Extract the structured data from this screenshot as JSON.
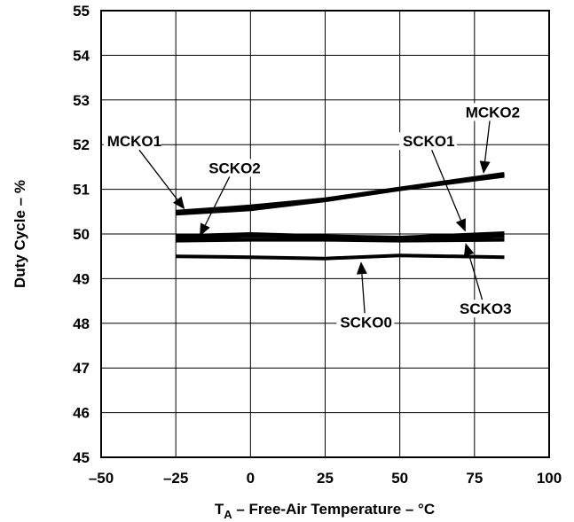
{
  "chart_data": {
    "type": "line",
    "xlabel_prefix": "T",
    "xlabel_sub": "A",
    "xlabel_rest": " – Free-Air Temperature – °C",
    "ylabel": "Duty Cycle – %",
    "xlim": [
      -50,
      100
    ],
    "ylim": [
      45,
      55
    ],
    "xticks": [
      -50,
      -25,
      0,
      25,
      50,
      75,
      100
    ],
    "xtick_labels": [
      "–50",
      "–25",
      "0",
      "25",
      "50",
      "75",
      "100"
    ],
    "yticks": [
      45,
      46,
      47,
      48,
      49,
      50,
      51,
      52,
      53,
      54,
      55
    ],
    "ytick_labels": [
      "45",
      "46",
      "47",
      "48",
      "49",
      "50",
      "51",
      "52",
      "53",
      "54",
      "55"
    ],
    "grid": true,
    "series": [
      {
        "name": "MCKO1",
        "x": [
          -25,
          0,
          25,
          50,
          85
        ],
        "y": [
          50.45,
          50.55,
          50.75,
          51.0,
          51.3
        ]
      },
      {
        "name": "MCKO2",
        "x": [
          -25,
          0,
          25,
          50,
          85
        ],
        "y": [
          50.5,
          50.62,
          50.78,
          51.02,
          51.35
        ]
      },
      {
        "name": "SCKO1",
        "x": [
          -25,
          0,
          25,
          50,
          85
        ],
        "y": [
          49.95,
          50.0,
          49.95,
          49.92,
          50.02
        ]
      },
      {
        "name": "SCKO2",
        "x": [
          -25,
          0,
          25,
          50,
          85
        ],
        "y": [
          49.9,
          49.95,
          49.93,
          49.88,
          49.95
        ]
      },
      {
        "name": "SCKO3",
        "x": [
          -25,
          0,
          25,
          50,
          85
        ],
        "y": [
          49.85,
          49.87,
          49.87,
          49.85,
          49.87
        ]
      },
      {
        "name": "SCKO0",
        "x": [
          -25,
          0,
          25,
          50,
          85
        ],
        "y": [
          49.5,
          49.48,
          49.45,
          49.52,
          49.48
        ]
      }
    ],
    "annotations": [
      {
        "text": "MCKO1",
        "label_at": [
          -48,
          52.0
        ],
        "arrow_tip": [
          -22,
          50.55
        ]
      },
      {
        "text": "SCKO2",
        "label_at": [
          -14,
          51.4
        ],
        "arrow_tip": [
          -17,
          49.95
        ]
      },
      {
        "text": "SCKO1",
        "label_at": [
          51,
          52.0
        ],
        "arrow_tip": [
          72,
          50.05
        ]
      },
      {
        "text": "MCKO2",
        "label_at": [
          72,
          52.65
        ],
        "arrow_tip": [
          78,
          51.35
        ]
      },
      {
        "text": "SCKO3",
        "label_at": [
          70,
          48.25
        ],
        "arrow_tip": [
          72,
          49.8
        ]
      },
      {
        "text": "SCKO0",
        "label_at": [
          30,
          47.95
        ],
        "arrow_tip": [
          37,
          49.38
        ]
      }
    ]
  }
}
